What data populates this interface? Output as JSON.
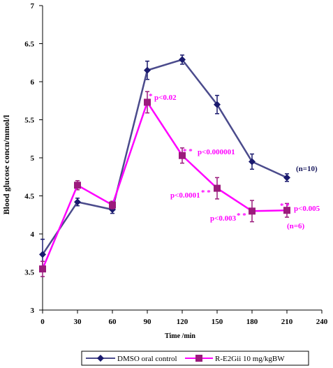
{
  "chart_data": {
    "type": "line",
    "xlabel": "Time /min",
    "ylabel": "Blood glucose  concn/mmol/l",
    "xlim": [
      0,
      240
    ],
    "ylim": [
      3,
      7
    ],
    "xticks": [
      0,
      30,
      60,
      90,
      120,
      150,
      180,
      210,
      240
    ],
    "yticks": [
      3,
      3.5,
      4,
      4.5,
      5,
      5.5,
      6,
      6.5,
      7
    ],
    "grid": false,
    "legend_position": "bottom",
    "series": [
      {
        "name": "DMSO oral control",
        "color": "#4b4b8c",
        "marker": "diamond",
        "x": [
          0,
          30,
          60,
          90,
          120,
          150,
          180,
          210
        ],
        "y": [
          3.73,
          4.42,
          4.32,
          6.15,
          6.29,
          5.7,
          4.95,
          4.74
        ],
        "err": [
          0.2,
          0.05,
          0.05,
          0.12,
          0.06,
          0.12,
          0.1,
          0.05
        ]
      },
      {
        "name": "R-E2Gii 10 mg/kgBW",
        "color": "#ff00ff",
        "marker_color": "#9b1b7c",
        "marker": "square",
        "x": [
          0,
          30,
          60,
          90,
          120,
          150,
          180,
          210
        ],
        "y": [
          3.54,
          4.64,
          4.38,
          5.73,
          5.03,
          4.6,
          4.3,
          4.31
        ],
        "err": [
          0.1,
          0.06,
          0.05,
          0.14,
          0.1,
          0.14,
          0.14,
          0.09
        ]
      }
    ],
    "annotations": [
      {
        "id": "ann-90-star",
        "text": "*",
        "color": "#ff00ff"
      },
      {
        "id": "ann-90-p",
        "text": "p<0.02",
        "color": "#ff00ff"
      },
      {
        "id": "ann-120-star",
        "text": "* *",
        "color": "#ff00ff"
      },
      {
        "id": "ann-120-p",
        "text": "p<0.000001",
        "color": "#ff00ff"
      },
      {
        "id": "ann-150-p",
        "text": "p<0.0001",
        "color": "#ff00ff"
      },
      {
        "id": "ann-150-star",
        "text": "* *",
        "color": "#ff00ff"
      },
      {
        "id": "ann-180-p",
        "text": "p<0.003",
        "color": "#ff00ff"
      },
      {
        "id": "ann-180-star",
        "text": "* *",
        "color": "#ff00ff"
      },
      {
        "id": "ann-210-star",
        "text": "* *",
        "color": "#ff00ff"
      },
      {
        "id": "ann-210-p",
        "text": "p<0.005",
        "color": "#ff00ff"
      },
      {
        "id": "ann-n6",
        "text": "(n=6)",
        "color": "#ff00ff"
      },
      {
        "id": "ann-n10",
        "text": "(n=10)",
        "color": "#1a1a5e"
      }
    ]
  }
}
